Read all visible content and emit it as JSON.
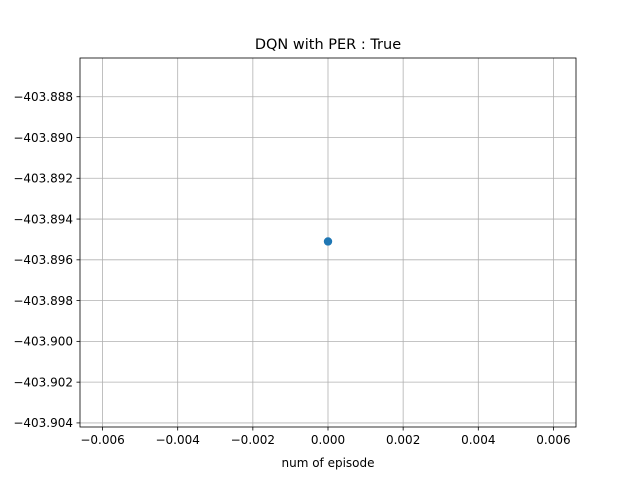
{
  "chart_data": {
    "type": "scatter",
    "title": "DQN with PER : True",
    "xlabel": "num of episode",
    "ylabel": "",
    "xlim": [
      -0.0066,
      0.0066
    ],
    "ylim": [
      -403.9042,
      -403.8861
    ],
    "xticks": [
      -0.006,
      -0.004,
      -0.002,
      0.0,
      0.002,
      0.004,
      0.006
    ],
    "xtick_labels": [
      "−0.006",
      "−0.004",
      "−0.002",
      "0.000",
      "0.002",
      "0.004",
      "0.006"
    ],
    "yticks": [
      -403.888,
      -403.89,
      -403.892,
      -403.894,
      -403.896,
      -403.898,
      -403.9,
      -403.902,
      -403.904
    ],
    "ytick_labels": [
      "−403.888",
      "−403.890",
      "−403.892",
      "−403.894",
      "−403.896",
      "−403.898",
      "−403.900",
      "−403.902",
      "−403.904"
    ],
    "grid": true,
    "series": [
      {
        "color": "#1f77b4",
        "points": [
          {
            "x": 0.0,
            "y": -403.8951
          }
        ]
      }
    ]
  }
}
